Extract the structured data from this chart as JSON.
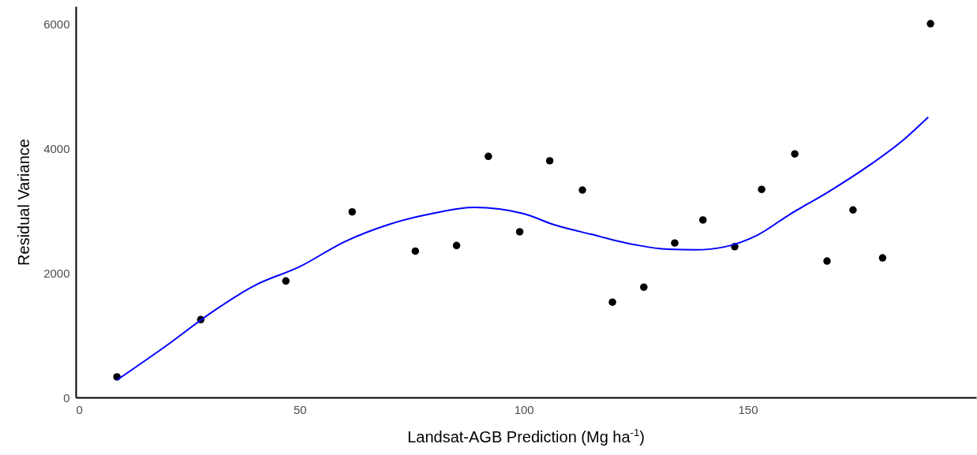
{
  "chart_data": {
    "type": "scatter",
    "xlabel": "Landsat-AGB Prediction (Mg ha$^{-1}$)",
    "ylabel": "Residual Variance",
    "xlim": [
      0,
      201
    ],
    "ylim": [
      0,
      6280
    ],
    "xticks": [
      0,
      50,
      100,
      150
    ],
    "yticks": [
      0,
      2000,
      4000,
      6000
    ],
    "grid": false,
    "series": [
      {
        "marker": "circle",
        "color": "#000000",
        "x": [
          9.2,
          27.9,
          46.9,
          61.7,
          75.8,
          85.0,
          92.1,
          99.1,
          105.8,
          113.1,
          119.8,
          126.8,
          133.7,
          140.0,
          147.1,
          153.1,
          160.5,
          167.7,
          173.5,
          180.1,
          190.8
        ],
        "values": [
          330,
          1250,
          1870,
          2980,
          2350,
          2440,
          3870,
          2660,
          3800,
          3330,
          1530,
          1770,
          2480,
          2850,
          2420,
          3340,
          3910,
          2190,
          3010,
          2240,
          6000
        ]
      },
      {
        "type": "line",
        "color": "#0000ff",
        "line_style": "solid",
        "x": [
          9.2,
          20,
          30,
          40,
          50,
          60,
          70,
          80,
          89,
          100,
          106.5,
          115,
          125,
          132,
          138.3,
          145,
          152,
          159.4,
          168,
          177,
          185,
          190.3
        ],
        "values": [
          280,
          820,
          1350,
          1800,
          2100,
          2500,
          2780,
          2960,
          3050,
          2950,
          2780,
          2620,
          2450,
          2380,
          2370,
          2420,
          2600,
          2940,
          3300,
          3720,
          4150,
          4500
        ]
      }
    ]
  }
}
